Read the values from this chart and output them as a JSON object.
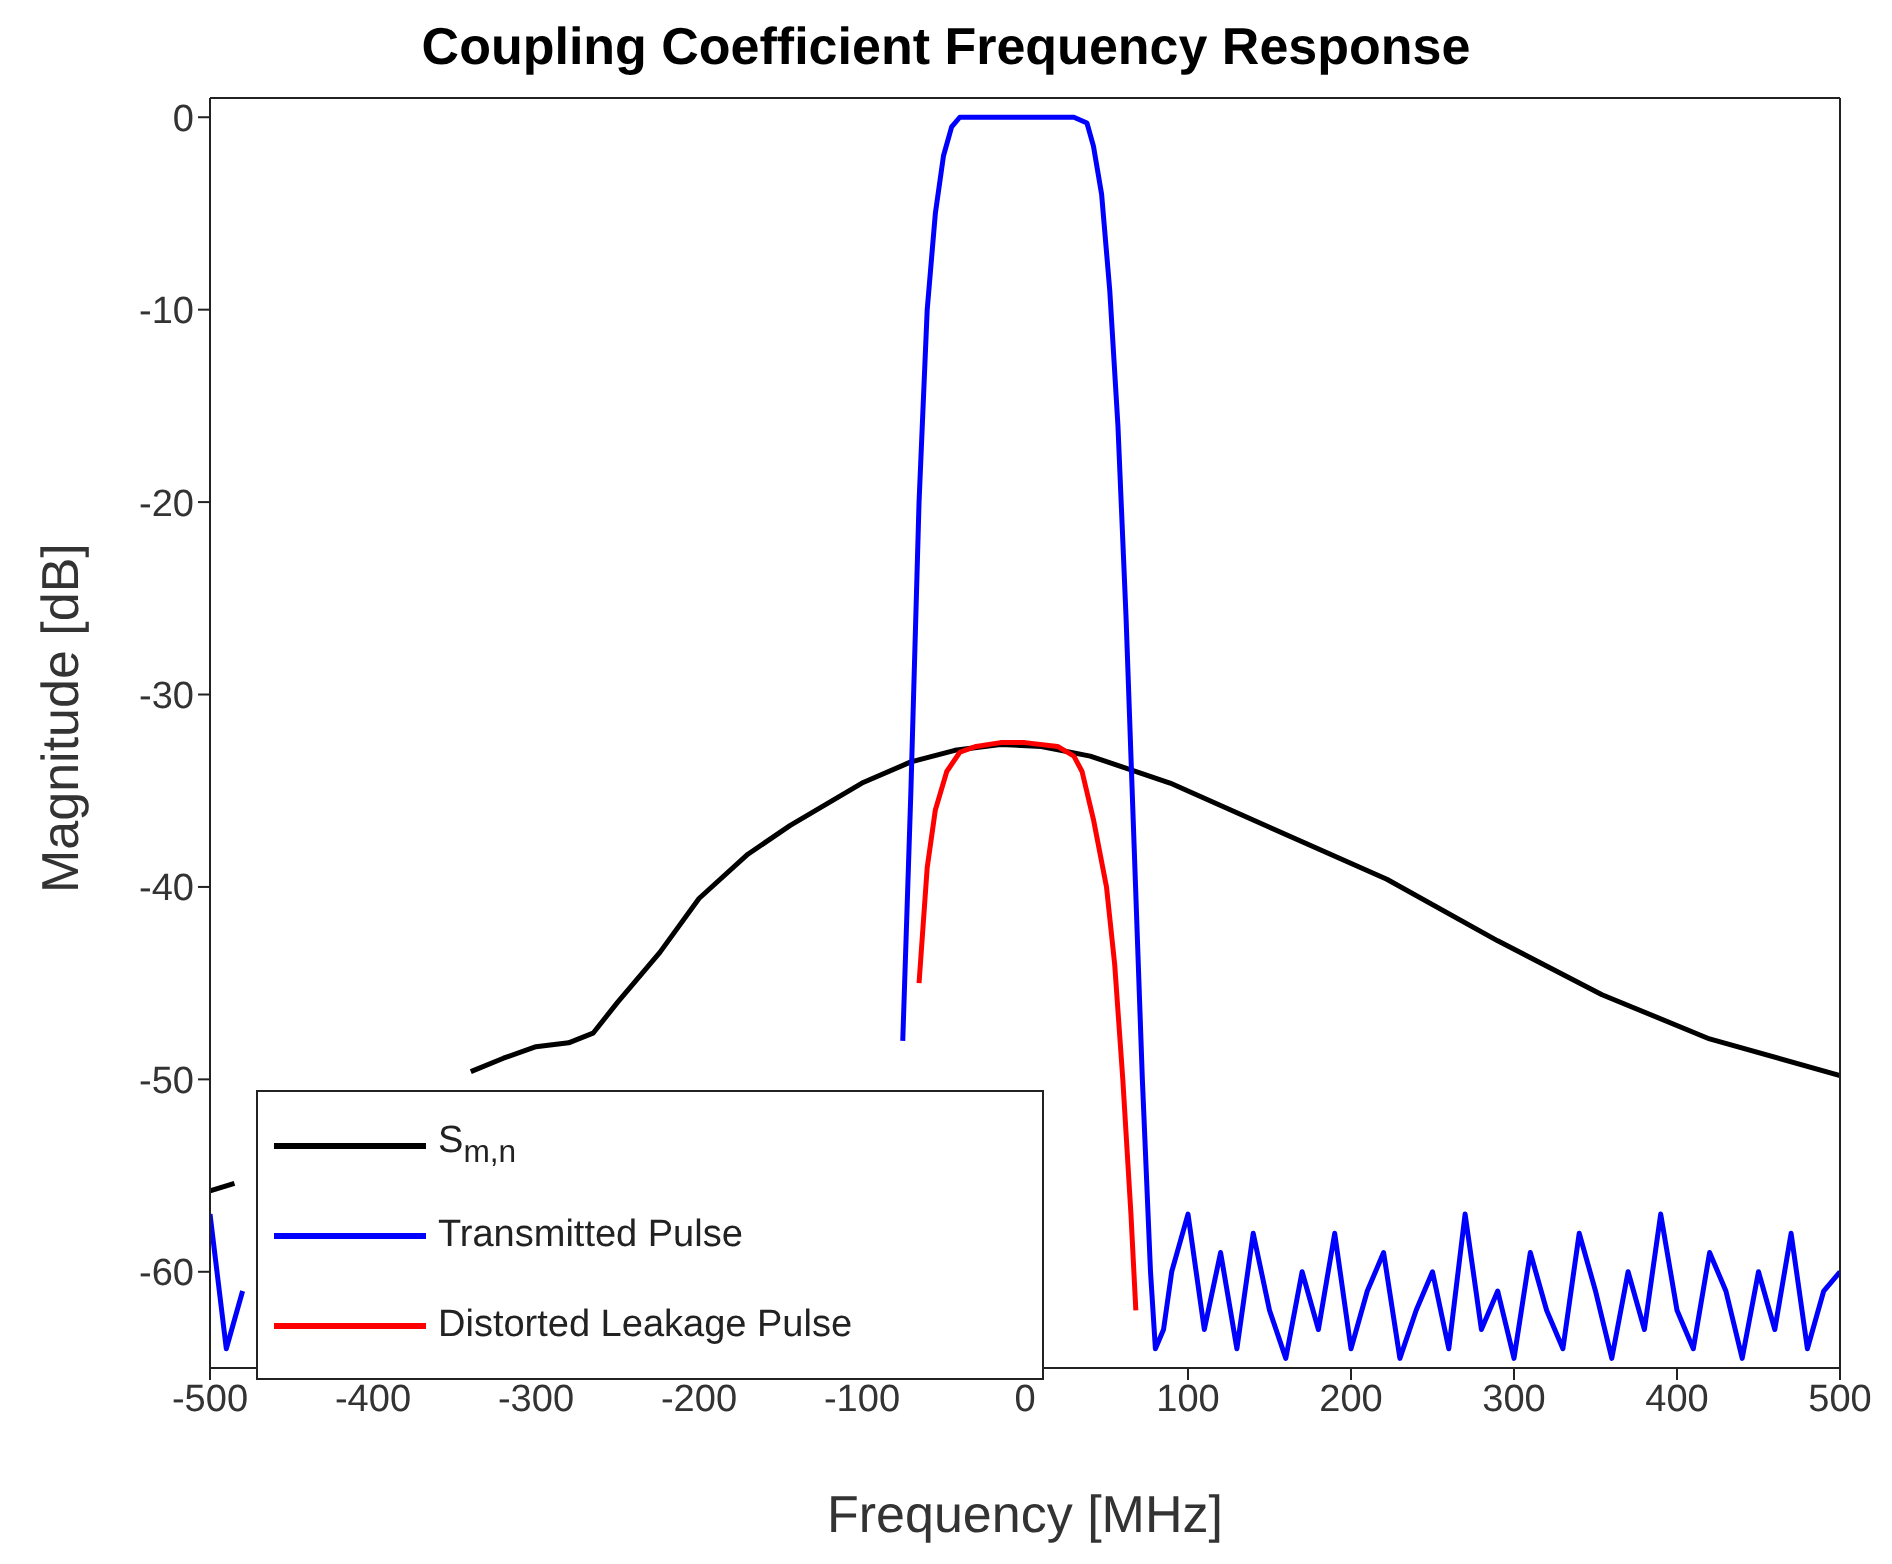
{
  "chart_data": {
    "type": "line",
    "title": "Coupling Coefficient Frequency Response",
    "xlabel": "Frequency [MHz]",
    "ylabel": "Magnitude [dB]",
    "xlim": [
      -500,
      500
    ],
    "xticks": [
      -500,
      -400,
      -300,
      -200,
      -100,
      0,
      100,
      200,
      300,
      400,
      500
    ],
    "ylim": [
      -65,
      1
    ],
    "yticks": [
      -60,
      -50,
      -40,
      -30,
      -20,
      -10,
      0
    ],
    "legend": "bottom left",
    "grid": false,
    "marker": "none",
    "line_style": "solid",
    "series": [
      {
        "name": "S$_{m,n}$",
        "color": "#000000",
        "x": [
          -500,
          -485,
          -450,
          -400,
          -340,
          -320,
          -300,
          -280,
          -265,
          -250,
          -224,
          -200,
          -170,
          -144,
          -100,
          -70,
          -43,
          -15,
          10,
          40,
          89,
          150,
          222,
          290,
          354,
          420,
          500
        ],
        "values": [
          -55.8,
          -55.4,
          null,
          null,
          -49.6,
          -48.9,
          -48.3,
          -48.1,
          -47.6,
          -46,
          -43.4,
          -40.6,
          -38.3,
          -36.8,
          -34.6,
          -33.5,
          -32.9,
          -32.6,
          -32.7,
          -33.2,
          -34.6,
          -36.9,
          -39.6,
          -42.8,
          -45.6,
          -47.9,
          -49.8
        ]
      },
      {
        "name": "Transmitted Pulse",
        "color": "#0000ff",
        "x": [
          -500,
          -490,
          -480,
          -470,
          -460,
          -450,
          -440,
          -430,
          -420,
          -410,
          -400,
          -390,
          -380,
          -370,
          -360,
          -350,
          -340,
          -330,
          -320,
          -310,
          -300,
          -290,
          -280,
          -270,
          -260,
          -250,
          -240,
          -230,
          -220,
          -210,
          -200,
          -190,
          -180,
          -170,
          -160,
          -150,
          -140,
          -130,
          -120,
          -110,
          -100,
          -90,
          -85,
          -80,
          -75,
          -70,
          -65,
          -60,
          -55,
          -50,
          -45,
          -40,
          -30,
          0,
          30,
          38,
          42,
          47,
          52,
          57,
          62,
          67,
          72,
          77,
          80,
          85,
          90,
          100,
          110,
          120,
          130,
          140,
          150,
          160,
          170,
          180,
          190,
          200,
          210,
          220,
          230,
          240,
          250,
          260,
          270,
          280,
          290,
          300,
          310,
          320,
          330,
          340,
          350,
          360,
          370,
          380,
          390,
          400,
          410,
          420,
          430,
          440,
          450,
          460,
          470,
          480,
          490,
          500
        ],
        "values": [
          -57,
          -64,
          -61,
          null,
          null,
          null,
          null,
          null,
          null,
          null,
          null,
          null,
          null,
          null,
          null,
          null,
          null,
          null,
          null,
          null,
          null,
          null,
          null,
          null,
          null,
          null,
          null,
          null,
          null,
          null,
          null,
          null,
          null,
          null,
          null,
          null,
          null,
          null,
          null,
          null,
          null,
          null,
          null,
          null,
          -48,
          -35,
          -20,
          -10,
          -5,
          -2,
          -0.5,
          0,
          0,
          0,
          0,
          -0.3,
          -1.5,
          -4,
          -9,
          -16,
          -26,
          -38,
          -50,
          -60,
          -64,
          -63,
          -60,
          -57,
          -63,
          -59,
          -64,
          -58,
          -62,
          -64.5,
          -60,
          -63,
          -58,
          -64,
          -61,
          -59,
          -64.5,
          -62,
          -60,
          -64,
          -57,
          -63,
          -61,
          -64.5,
          -59,
          -62,
          -64,
          -58,
          -61,
          -64.5,
          -60,
          -63,
          -57,
          -62,
          -64,
          -59,
          -61,
          -64.5,
          -60,
          -63,
          -58,
          -64,
          -61,
          -60
        ]
      },
      {
        "name": "Distorted Leakage Pulse",
        "color": "#ff0000",
        "x": [
          -65,
          -60,
          -55,
          -48,
          -40,
          -30,
          -15,
          0,
          20,
          30,
          35,
          42,
          50,
          55,
          60,
          65,
          68
        ],
        "values": [
          -45,
          -39,
          -36,
          -34,
          -33,
          -32.7,
          -32.5,
          -32.5,
          -32.7,
          -33.2,
          -34,
          -36.5,
          -40,
          -44,
          -50,
          -57,
          -62
        ]
      }
    ]
  }
}
